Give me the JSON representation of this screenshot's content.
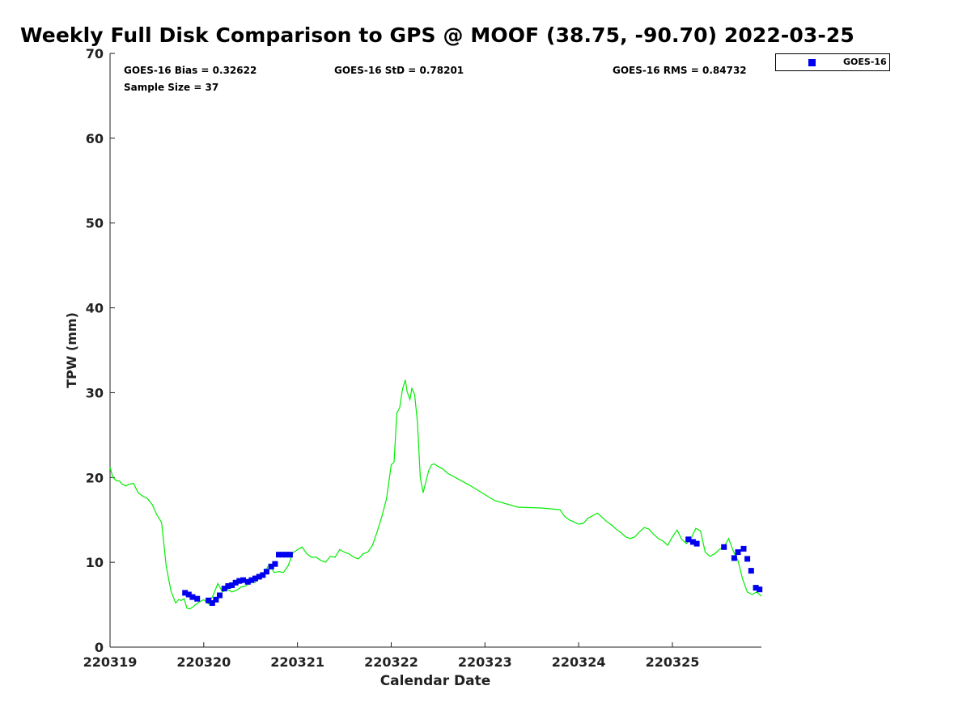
{
  "chart_data": {
    "type": "line",
    "title": "Weekly Full Disk Comparison to GPS @ MOOF (38.75, -90.70) 2022-03-25",
    "xlabel": "Calendar Date",
    "ylabel": "TPW (mm)",
    "xlim": [
      0,
      6.95
    ],
    "ylim": [
      0,
      70
    ],
    "x_ticks": [
      {
        "value": 0,
        "label": "220319"
      },
      {
        "value": 1,
        "label": "220320"
      },
      {
        "value": 2,
        "label": "220321"
      },
      {
        "value": 3,
        "label": "220322"
      },
      {
        "value": 4,
        "label": "220323"
      },
      {
        "value": 5,
        "label": "220324"
      },
      {
        "value": 6,
        "label": "220325"
      }
    ],
    "y_ticks": [
      0,
      10,
      20,
      30,
      40,
      50,
      60,
      70
    ],
    "x_axis_note": "x values are days elapsed since 220319 00:00",
    "grid": false,
    "legend": {
      "position": "outside-top-right",
      "entries": [
        "GOES-16"
      ]
    },
    "stats": {
      "bias": "GOES-16 Bias = 0.32622",
      "std": "GOES-16 StD = 0.78201",
      "rms": "GOES-16 RMS = 0.84732",
      "sample_size": "Sample Size = 37"
    },
    "series": [
      {
        "name": "GPS",
        "style": "line",
        "color": "#00ee00",
        "x": [
          0.0,
          0.03,
          0.07,
          0.1,
          0.13,
          0.17,
          0.2,
          0.25,
          0.3,
          0.35,
          0.4,
          0.45,
          0.5,
          0.55,
          0.6,
          0.65,
          0.7,
          0.73,
          0.76,
          0.79,
          0.82,
          0.85,
          0.88,
          0.91,
          0.95,
          1.0,
          1.05,
          1.1,
          1.15,
          1.2,
          1.25,
          1.3,
          1.35,
          1.4,
          1.45,
          1.5,
          1.55,
          1.6,
          1.65,
          1.7,
          1.75,
          1.8,
          1.85,
          1.9,
          1.95,
          2.0,
          2.05,
          2.1,
          2.15,
          2.2,
          2.25,
          2.3,
          2.35,
          2.4,
          2.45,
          2.5,
          2.55,
          2.6,
          2.65,
          2.7,
          2.75,
          2.8,
          2.85,
          2.9,
          2.95,
          3.0,
          3.03,
          3.06,
          3.09,
          3.12,
          3.15,
          3.17,
          3.2,
          3.22,
          3.25,
          3.28,
          3.31,
          3.34,
          3.37,
          3.4,
          3.43,
          3.46,
          3.5,
          3.55,
          3.6,
          3.85,
          4.1,
          4.35,
          4.6,
          4.8,
          4.85,
          4.9,
          5.0,
          5.05,
          5.1,
          5.15,
          5.2,
          5.25,
          5.3,
          5.35,
          5.4,
          5.45,
          5.5,
          5.55,
          5.6,
          5.65,
          5.7,
          5.75,
          5.8,
          5.85,
          5.9,
          5.95,
          6.0,
          6.05,
          6.1,
          6.15,
          6.2,
          6.25,
          6.3,
          6.35,
          6.4,
          6.45,
          6.5,
          6.55,
          6.6,
          6.65,
          6.7,
          6.75,
          6.8,
          6.85,
          6.9,
          6.95
        ],
        "y": [
          21.2,
          20.0,
          19.6,
          19.6,
          19.2,
          19.0,
          19.2,
          19.3,
          18.2,
          17.8,
          17.5,
          16.8,
          15.6,
          14.7,
          9.5,
          6.6,
          5.2,
          5.6,
          5.5,
          5.7,
          4.6,
          4.5,
          4.7,
          5.0,
          5.3,
          5.6,
          5.1,
          6.1,
          7.5,
          6.5,
          6.8,
          6.5,
          6.7,
          7.1,
          7.2,
          7.8,
          7.6,
          8.6,
          8.8,
          9.8,
          8.8,
          8.9,
          8.8,
          9.6,
          11.1,
          11.5,
          11.8,
          11.0,
          10.6,
          10.6,
          10.2,
          10.0,
          10.7,
          10.6,
          11.5,
          11.2,
          11.0,
          10.6,
          10.4,
          11.0,
          11.2,
          12.0,
          13.6,
          15.4,
          17.5,
          21.5,
          21.8,
          27.6,
          28.2,
          30.4,
          31.5,
          30.1,
          29.2,
          30.5,
          29.8,
          26.5,
          20.0,
          18.2,
          19.5,
          20.8,
          21.5,
          21.6,
          21.3,
          21.0,
          20.5,
          19.0,
          17.3,
          16.5,
          16.4,
          16.2,
          15.4,
          15.0,
          14.5,
          14.6,
          15.2,
          15.5,
          15.8,
          15.3,
          14.8,
          14.4,
          13.9,
          13.5,
          13.0,
          12.8,
          13.0,
          13.6,
          14.1,
          13.9,
          13.3,
          12.8,
          12.5,
          12.0,
          13.0,
          13.8,
          12.7,
          12.2,
          12.8,
          14.0,
          13.7,
          11.2,
          10.7,
          11.0,
          11.5,
          11.8,
          12.8,
          11.3,
          10.2,
          8.0,
          6.5,
          6.2,
          6.5,
          6.0
        ]
      },
      {
        "name": "GOES-16",
        "style": "markers",
        "marker": "square",
        "color": "#0000ee",
        "x": [
          0.8,
          0.84,
          0.88,
          0.93,
          1.05,
          1.09,
          1.13,
          1.17,
          1.22,
          1.26,
          1.3,
          1.34,
          1.38,
          1.42,
          1.47,
          1.51,
          1.55,
          1.59,
          1.63,
          1.67,
          1.72,
          1.76,
          1.8,
          1.84,
          1.88,
          1.92,
          6.17,
          6.22,
          6.26,
          6.55,
          6.66,
          6.7,
          6.76,
          6.8,
          6.84,
          6.89,
          6.93
        ],
        "y": [
          6.4,
          6.2,
          5.9,
          5.7,
          5.5,
          5.2,
          5.6,
          6.1,
          6.9,
          7.2,
          7.3,
          7.6,
          7.8,
          7.9,
          7.7,
          7.9,
          8.1,
          8.3,
          8.5,
          8.9,
          9.5,
          9.8,
          10.9,
          10.9,
          10.9,
          10.9,
          12.7,
          12.4,
          12.2,
          11.8,
          10.5,
          11.2,
          11.6,
          10.4,
          9.0,
          7.0,
          6.8
        ]
      }
    ]
  }
}
